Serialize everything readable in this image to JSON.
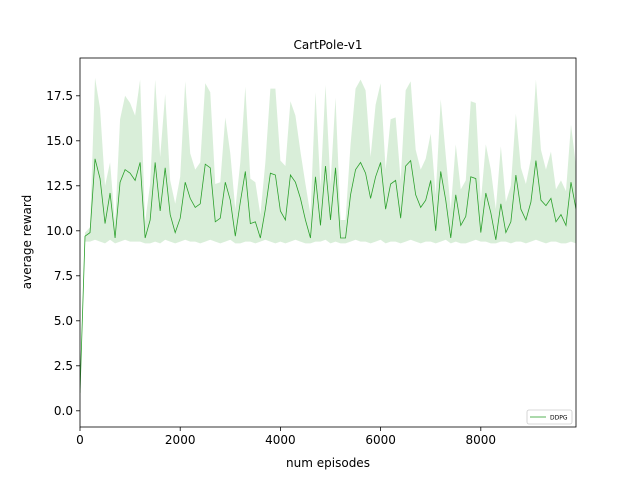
{
  "chart_data": {
    "type": "line",
    "title": "CartPole-v1",
    "xlabel": "num episodes",
    "ylabel": "average reward",
    "xlim": [
      0,
      9900
    ],
    "ylim": [
      -0.9,
      19.6
    ],
    "xticks": [
      0,
      2000,
      4000,
      6000,
      8000
    ],
    "xtick_labels": [
      "0",
      "2000",
      "4000",
      "6000",
      "8000"
    ],
    "yticks": [
      0.0,
      2.5,
      5.0,
      7.5,
      10.0,
      12.5,
      15.0,
      17.5
    ],
    "ytick_labels": [
      "0.0",
      "2.5",
      "5.0",
      "7.5",
      "10.0",
      "12.5",
      "15.0",
      "17.5"
    ],
    "grid": false,
    "legend_position": "lower-right",
    "series": [
      {
        "name": "DDPG",
        "color": "#2ca02c",
        "fill_color": "#2ca02c",
        "fill_opacity": 0.18,
        "x": [
          0,
          100,
          200,
          300,
          400,
          500,
          600,
          700,
          800,
          900,
          1000,
          1100,
          1200,
          1300,
          1400,
          1500,
          1600,
          1700,
          1800,
          1900,
          2000,
          2100,
          2200,
          2300,
          2400,
          2500,
          2600,
          2700,
          2800,
          2900,
          3000,
          3100,
          3200,
          3300,
          3400,
          3500,
          3600,
          3700,
          3800,
          3900,
          4000,
          4100,
          4200,
          4300,
          4400,
          4500,
          4600,
          4700,
          4800,
          4900,
          5000,
          5100,
          5200,
          5300,
          5400,
          5500,
          5600,
          5700,
          5800,
          5900,
          6000,
          6100,
          6200,
          6300,
          6400,
          6500,
          6600,
          6700,
          6800,
          6900,
          7000,
          7100,
          7200,
          7300,
          7400,
          7500,
          7600,
          7700,
          7800,
          7900,
          8000,
          8100,
          8200,
          8300,
          8400,
          8500,
          8600,
          8700,
          8800,
          8900,
          9000,
          9100,
          9200,
          9300,
          9400,
          9500,
          9600,
          9700,
          9800,
          9900
        ],
        "mean": [
          1.0,
          9.7,
          9.9,
          14.0,
          12.9,
          10.4,
          12.1,
          9.6,
          12.7,
          13.4,
          13.2,
          12.8,
          13.8,
          9.6,
          10.6,
          13.8,
          11.1,
          13.5,
          10.9,
          9.9,
          10.7,
          12.7,
          11.8,
          11.3,
          11.5,
          13.7,
          13.5,
          10.5,
          10.7,
          12.7,
          11.7,
          9.7,
          11.6,
          13.3,
          10.4,
          10.5,
          9.6,
          11.2,
          13.2,
          13.1,
          11.1,
          10.6,
          13.1,
          12.7,
          11.8,
          10.6,
          9.6,
          13.0,
          10.3,
          13.6,
          10.6,
          13.5,
          9.6,
          9.6,
          12.0,
          13.4,
          13.8,
          13.2,
          11.8,
          13.0,
          13.8,
          11.2,
          12.6,
          12.8,
          10.7,
          13.6,
          13.9,
          12.0,
          11.3,
          11.7,
          12.8,
          10.0,
          13.3,
          11.7,
          9.6,
          12.0,
          10.3,
          10.8,
          13.0,
          12.9,
          9.9,
          12.1,
          11.0,
          9.5,
          11.5,
          9.9,
          10.5,
          13.1,
          11.2,
          10.6,
          11.6,
          13.9,
          11.7,
          11.4,
          11.8,
          10.5,
          10.9,
          10.3,
          12.7,
          11.2
        ],
        "upper": [
          1.0,
          9.9,
          10.2,
          18.5,
          16.8,
          12.5,
          13.8,
          10.4,
          16.2,
          17.5,
          17.1,
          16.4,
          18.4,
          10.5,
          12.6,
          18.4,
          14.1,
          17.6,
          12.8,
          11.5,
          13.0,
          18.3,
          14.3,
          13.4,
          13.8,
          18.2,
          17.7,
          12.6,
          12.7,
          16.3,
          14.3,
          11.2,
          13.8,
          18.0,
          12.9,
          12.7,
          10.9,
          13.8,
          17.9,
          17.9,
          13.9,
          13.6,
          17.2,
          16.4,
          14.4,
          12.6,
          10.9,
          17.7,
          12.4,
          18.1,
          12.6,
          17.4,
          10.6,
          10.6,
          14.8,
          17.9,
          18.4,
          17.8,
          14.1,
          17.0,
          18.2,
          13.4,
          16.2,
          16.3,
          12.8,
          17.8,
          18.3,
          14.5,
          13.4,
          14.0,
          15.4,
          12.0,
          17.3,
          14.2,
          11.2,
          14.8,
          12.3,
          12.8,
          17.2,
          17.1,
          11.6,
          14.8,
          13.4,
          11.2,
          14.7,
          11.6,
          12.5,
          16.5,
          13.5,
          12.6,
          14.0,
          18.4,
          14.5,
          13.4,
          14.4,
          12.3,
          12.8,
          12.2,
          15.9,
          13.6
        ],
        "lower": [
          1.0,
          9.4,
          9.4,
          9.5,
          9.4,
          9.3,
          9.5,
          9.3,
          9.4,
          9.5,
          9.4,
          9.4,
          9.4,
          9.3,
          9.3,
          9.4,
          9.3,
          9.5,
          9.4,
          9.3,
          9.4,
          9.5,
          9.4,
          9.4,
          9.3,
          9.4,
          9.5,
          9.4,
          9.3,
          9.4,
          9.5,
          9.3,
          9.3,
          9.4,
          9.4,
          9.3,
          9.4,
          9.5,
          9.4,
          9.3,
          9.4,
          9.3,
          9.4,
          9.5,
          9.4,
          9.3,
          9.3,
          9.4,
          9.4,
          9.5,
          9.3,
          9.4,
          9.3,
          9.3,
          9.4,
          9.5,
          9.4,
          9.4,
          9.3,
          9.4,
          9.5,
          9.3,
          9.4,
          9.4,
          9.3,
          9.4,
          9.5,
          9.4,
          9.3,
          9.4,
          9.4,
          9.3,
          9.4,
          9.5,
          9.3,
          9.4,
          9.3,
          9.3,
          9.4,
          9.5,
          9.4,
          9.4,
          9.3,
          9.3,
          9.4,
          9.4,
          9.3,
          9.4,
          9.4,
          9.3,
          9.4,
          9.5,
          9.4,
          9.3,
          9.4,
          9.4,
          9.3,
          9.3,
          9.4,
          9.3
        ]
      }
    ]
  }
}
